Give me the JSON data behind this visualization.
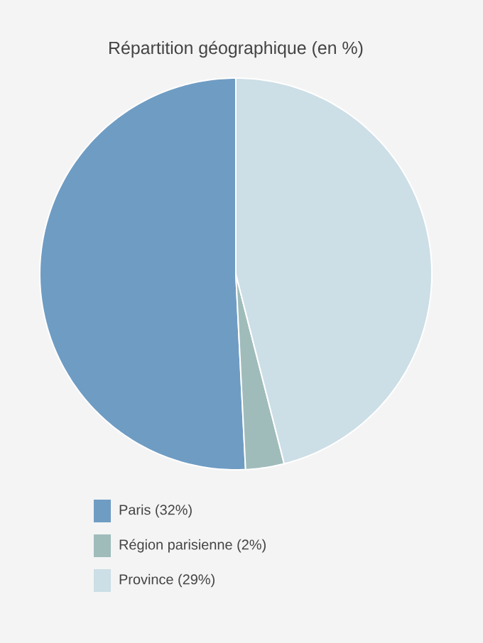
{
  "chart_data": {
    "type": "pie",
    "title": "Répartition géographique (en %)",
    "categories": [
      "Paris (32%)",
      "Région parisienne (2%)",
      "Province (29%)"
    ],
    "values": [
      32,
      2,
      29
    ],
    "colors": [
      "#6f9cc3",
      "#9fbcbb",
      "#ccdee6"
    ],
    "legend": "bottom"
  }
}
